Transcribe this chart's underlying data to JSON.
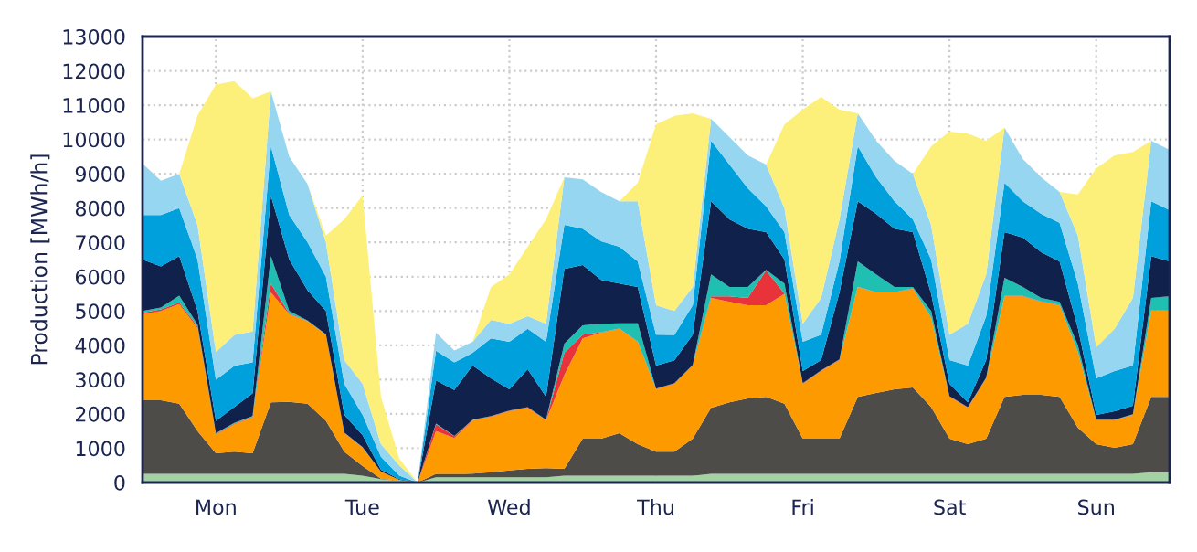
{
  "chart_data": {
    "type": "area",
    "stacked": true,
    "ylabel": "Production [MWh/h]",
    "categories": [
      null,
      null,
      null,
      null,
      "Mon",
      null,
      null,
      null,
      null,
      null,
      null,
      null,
      "Tue",
      null,
      null,
      null,
      null,
      null,
      null,
      null,
      "Wed",
      null,
      null,
      null,
      null,
      null,
      null,
      null,
      "Thu",
      null,
      null,
      null,
      null,
      null,
      null,
      null,
      "Fri",
      null,
      null,
      null,
      null,
      null,
      null,
      null,
      "Sat",
      null,
      null,
      null,
      null,
      null,
      null,
      null,
      "Sun",
      null,
      null,
      null,
      null
    ],
    "ylim": [
      0,
      13000
    ],
    "yticks": [
      0,
      1000,
      2000,
      3000,
      4000,
      5000,
      6000,
      7000,
      8000,
      9000,
      10000,
      11000,
      12000,
      13000
    ],
    "grid": true,
    "series": [
      {
        "color": "#a3d3a3",
        "values": [
          250,
          250,
          250,
          250,
          250,
          250,
          250,
          250,
          250,
          250,
          250,
          250,
          200,
          100,
          50,
          0,
          150,
          150,
          150,
          150,
          150,
          150,
          150,
          200,
          200,
          200,
          200,
          200,
          200,
          200,
          200,
          250,
          250,
          250,
          250,
          250,
          250,
          250,
          250,
          250,
          250,
          250,
          250,
          250,
          250,
          250,
          250,
          250,
          250,
          250,
          250,
          250,
          250,
          250,
          250,
          300,
          300
        ]
      },
      {
        "color": "#4e4c49",
        "values": [
          2150,
          2150,
          2050,
          1250,
          600,
          650,
          600,
          2090,
          2100,
          2050,
          1550,
          650,
          280,
          10,
          10,
          0,
          100,
          100,
          110,
          150,
          200,
          250,
          270,
          200,
          1080,
          1080,
          1240,
          920,
          700,
          700,
          1080,
          1930,
          2090,
          2200,
          2250,
          2050,
          1030,
          1030,
          1030,
          2250,
          2360,
          2470,
          2520,
          1950,
          1030,
          870,
          1030,
          2250,
          2310,
          2310,
          2250,
          1350,
          870,
          760,
          870,
          2200,
          2200
        ]
      },
      {
        "color": "#fd9a00",
        "values": [
          2500,
          2600,
          2900,
          3000,
          550,
          800,
          1050,
          3200,
          2550,
          2400,
          2500,
          540,
          530,
          210,
          20,
          0,
          1250,
          1050,
          1550,
          1620,
          1730,
          1780,
          1390,
          2740,
          2920,
          3090,
          3040,
          2980,
          1820,
          1980,
          2130,
          3200,
          2930,
          2720,
          2670,
          3200,
          1600,
          1970,
          2290,
          3200,
          2930,
          2820,
          2880,
          2600,
          1220,
          1060,
          1760,
          2930,
          2870,
          2710,
          2670,
          2200,
          690,
          800,
          850,
          2510,
          2510
        ]
      },
      {
        "color": "#e8333b",
        "values": [
          50,
          50,
          50,
          50,
          20,
          20,
          20,
          260,
          20,
          10,
          10,
          10,
          10,
          0,
          0,
          0,
          200,
          50,
          10,
          10,
          10,
          10,
          10,
          640,
          110,
          10,
          10,
          10,
          10,
          10,
          10,
          50,
          160,
          210,
          1010,
          10,
          10,
          10,
          10,
          10,
          10,
          10,
          10,
          10,
          10,
          10,
          10,
          10,
          10,
          10,
          10,
          10,
          10,
          10,
          10,
          10,
          10
        ]
      },
      {
        "color": "#1fbfb2",
        "values": [
          50,
          50,
          200,
          50,
          20,
          20,
          20,
          800,
          80,
          10,
          10,
          10,
          10,
          0,
          0,
          0,
          20,
          10,
          10,
          10,
          10,
          10,
          10,
          270,
          270,
          250,
          150,
          530,
          10,
          10,
          10,
          640,
          270,
          320,
          20,
          290,
          10,
          10,
          10,
          740,
          520,
          150,
          40,
          190,
          10,
          10,
          10,
          530,
          260,
          100,
          90,
          190,
          10,
          10,
          10,
          360,
          410
        ]
      },
      {
        "color": "#10214c",
        "values": [
          1500,
          1200,
          1150,
          400,
          360,
          460,
          660,
          1760,
          1500,
          880,
          680,
          510,
          350,
          50,
          20,
          0,
          1260,
          1340,
          1580,
          1100,
          620,
          1100,
          670,
          2180,
          1760,
          1280,
          1160,
          1060,
          670,
          660,
          880,
          2130,
          1970,
          1700,
          1100,
          700,
          350,
          300,
          1950,
          1750,
          1760,
          1700,
          1600,
          500,
          360,
          140,
          510,
          1330,
          1440,
          1330,
          1180,
          500,
          140,
          250,
          250,
          1220,
          1020
        ]
      },
      {
        "color": "#00a0dc",
        "values": [
          1300,
          1500,
          1400,
          1500,
          1200,
          1200,
          900,
          1440,
          1300,
          1400,
          1000,
          910,
          590,
          380,
          100,
          0,
          860,
          800,
          370,
          1160,
          1380,
          1180,
          1600,
          1280,
          1060,
          1120,
          1070,
          750,
          900,
          740,
          860,
          1760,
          1600,
          1180,
          750,
          800,
          850,
          740,
          910,
          1600,
          1070,
          800,
          370,
          1000,
          690,
          1070,
          1280,
          1440,
          1060,
          1120,
          1120,
          1300,
          1070,
          1170,
          1170,
          1600,
          1490
        ]
      },
      {
        "color": "#96d6f0",
        "values": [
          1500,
          1000,
          1000,
          1000,
          800,
          900,
          900,
          1600,
          1700,
          1700,
          1000,
          690,
          910,
          370,
          300,
          0,
          530,
          350,
          320,
          540,
          530,
          370,
          530,
          1390,
          1440,
          1440,
          1330,
          1750,
          860,
          700,
          530,
          640,
          800,
          960,
          1220,
          700,
          530,
          1070,
          1220,
          960,
          1060,
          1180,
          1330,
          1000,
          740,
          1220,
          1220,
          1600,
          1230,
          1070,
          900,
          1400,
          900,
          1230,
          1970,
          1760,
          1760
        ]
      },
      {
        "color": "#fdf07a",
        "values": [
          0,
          0,
          0,
          3200,
          7800,
          7400,
          6800,
          0,
          0,
          0,
          200,
          4100,
          5490,
          1380,
          200,
          0,
          0,
          0,
          0,
          960,
          1440,
          2020,
          3040,
          0,
          0,
          0,
          0,
          540,
          5270,
          5690,
          5060,
          0,
          0,
          0,
          0,
          2440,
          6240,
          5860,
          3200,
          0,
          0,
          0,
          0,
          2300,
          5920,
          5540,
          3890,
          0,
          0,
          0,
          0,
          1200,
          5220,
          5060,
          4260,
          0,
          0
        ]
      }
    ]
  }
}
